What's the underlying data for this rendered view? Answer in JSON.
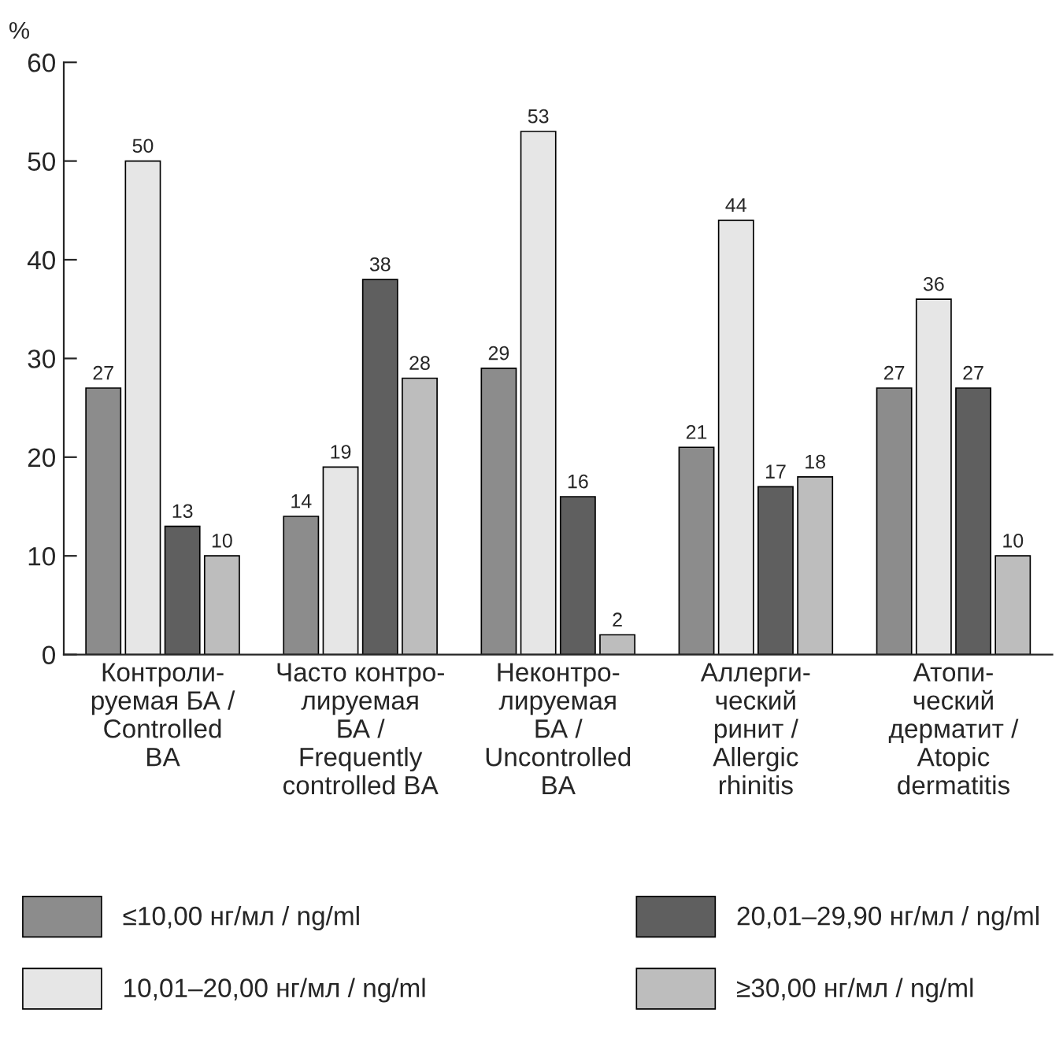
{
  "chart_data": {
    "type": "bar",
    "ylabel": "%",
    "categories": [
      "Контроли-\nруемая БА /\nControlled\nBA",
      "Часто контро-\nлируемая\nБА /\nFrequently\ncontrolled BA",
      "Неконтро-\nлируемая\nБА /\nUncontrolled\nBA",
      "Аллерги-\nческий\nринит /\nAllergic\nrhinitis",
      "Атопи-\nческий\nдерматит /\nAtopic\ndermatitis"
    ],
    "series": [
      {
        "name": "≤10,00 нг/мл / ng/ml",
        "color": "#8c8c8c",
        "values": [
          27,
          14,
          29,
          21,
          27
        ]
      },
      {
        "name": "10,01–20,00 нг/мл / ng/ml",
        "color": "#e6e6e6",
        "values": [
          50,
          19,
          53,
          44,
          36
        ]
      },
      {
        "name": "20,01–29,90 нг/мл / ng/ml",
        "color": "#5f5f5f",
        "values": [
          13,
          38,
          16,
          17,
          27
        ]
      },
      {
        "name": "≥30,00 нг/мл / ng/ml",
        "color": "#bdbdbd",
        "values": [
          10,
          28,
          2,
          18,
          10
        ]
      }
    ],
    "ylim": [
      0,
      60
    ],
    "yticks": [
      0,
      10,
      20,
      30,
      40,
      50,
      60
    ],
    "data_labels": true,
    "grid": false,
    "legend": "bottom"
  }
}
